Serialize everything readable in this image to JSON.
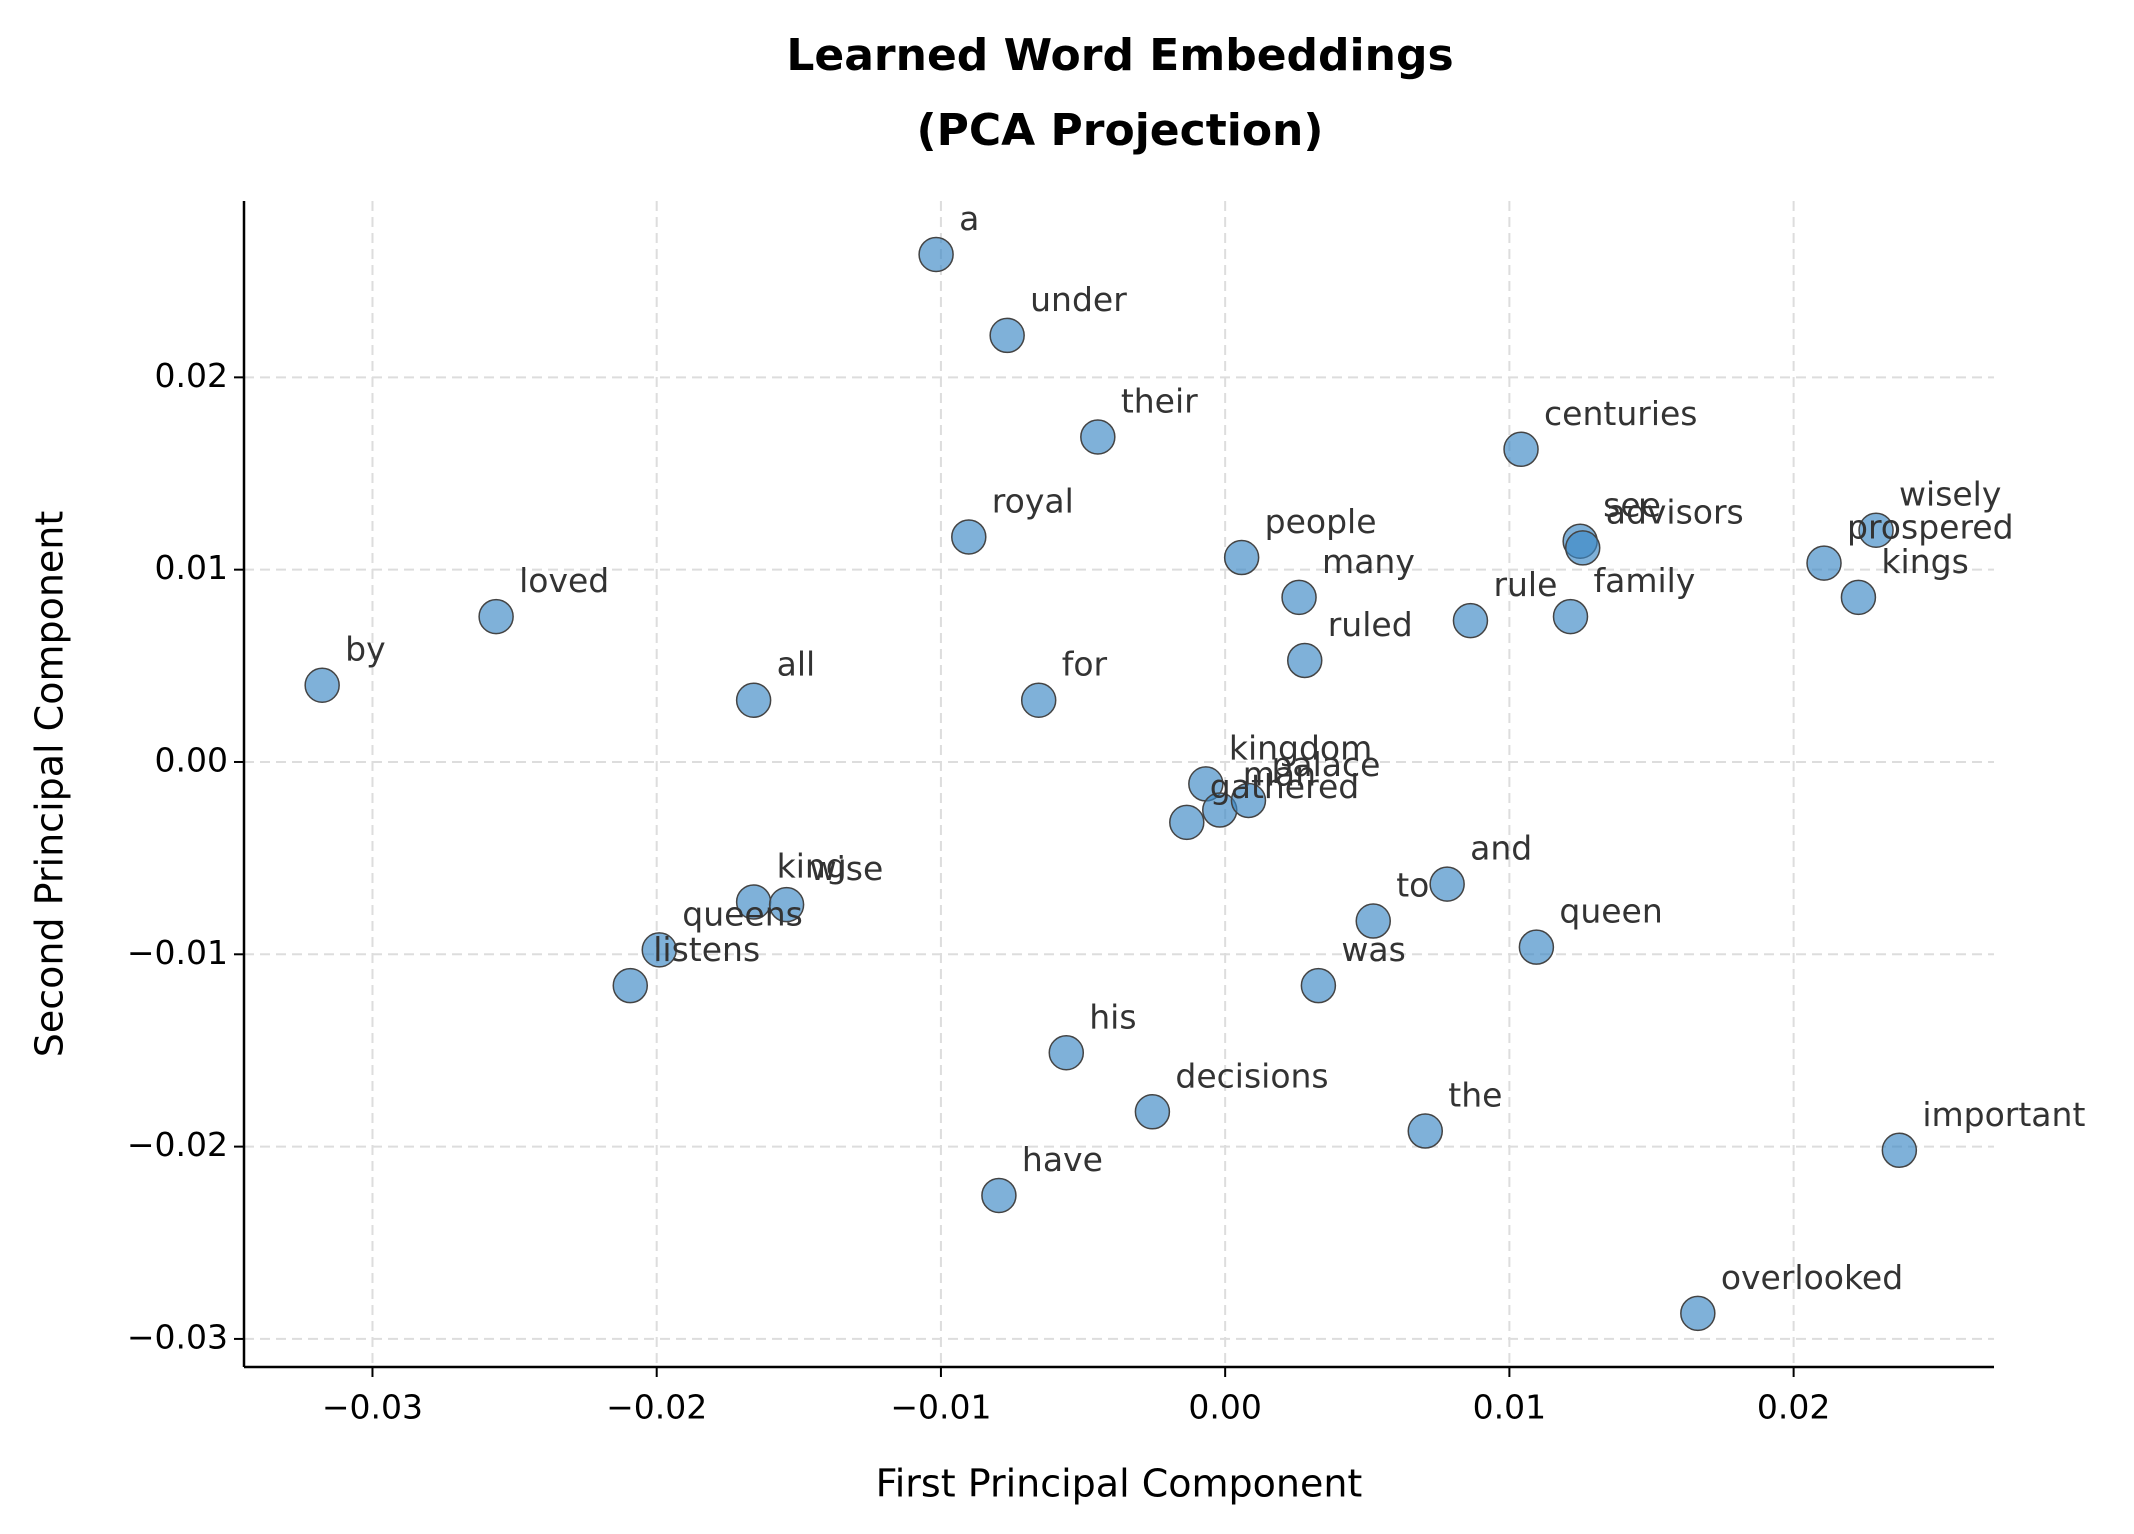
{
  "chart_data": {
    "type": "scatter",
    "title": [
      "Learned Word Embeddings",
      "(PCA Projection)"
    ],
    "x_label": "First Principal Component",
    "y_label": "Second Principal Component",
    "color": "#3a87c4",
    "grid": true,
    "xlim": [
      -0.03452,
      0.02705
    ],
    "ylim": [
      -0.03146,
      0.02917
    ],
    "xticks": [
      {
        "value": -0.03,
        "label": "−0.03"
      },
      {
        "value": -0.02,
        "label": "−0.02"
      },
      {
        "value": -0.01,
        "label": "−0.01"
      },
      {
        "value": 0,
        "label": "0.00"
      },
      {
        "value": 0.01,
        "label": "0.01"
      },
      {
        "value": 0.02,
        "label": "0.02"
      }
    ],
    "yticks": [
      {
        "value": -0.03,
        "label": "−0.03"
      },
      {
        "value": -0.02,
        "label": "−0.02"
      },
      {
        "value": -0.01,
        "label": "−0.01"
      },
      {
        "value": 0,
        "label": "0.00"
      },
      {
        "value": 0.01,
        "label": "0.01"
      },
      {
        "value": 0.02,
        "label": "0.02"
      }
    ],
    "point_labels": [
      "a",
      "under",
      "their",
      "centuries",
      "see",
      "advisors",
      "wisely",
      "prospered",
      "kings",
      "royal",
      "people",
      "many",
      "rule",
      "family",
      "ruled",
      "loved",
      "by",
      "all",
      "for",
      "kingdom",
      "man",
      "palace",
      "gathered",
      "king",
      "wise",
      "queens",
      "listens",
      "and",
      "to",
      "queen",
      "was",
      "his",
      "decisions",
      "the",
      "have",
      "important",
      "overlooked"
    ],
    "x": [
      -0.01017,
      -0.00767,
      -0.00448,
      0.01041,
      0.01249,
      0.01258,
      0.0229,
      0.02107,
      0.02228,
      -0.00902,
      0.00058,
      0.0026,
      0.00863,
      0.01215,
      0.0028,
      -0.02565,
      -0.03177,
      -0.01659,
      -0.00656,
      -0.00068,
      -0.00019,
      0.00082,
      -0.00135,
      -0.01659,
      -0.01543,
      -0.01991,
      -0.02093,
      0.00781,
      0.00521,
      0.01095,
      0.00328,
      -0.00559,
      -0.00256,
      0.00704,
      -0.00796,
      0.02372,
      0.01663
    ],
    "values": [
      0.02639,
      0.02218,
      0.0169,
      0.01626,
      0.01148,
      0.01113,
      0.01205,
      0.01034,
      0.00856,
      0.0117,
      0.01063,
      0.00856,
      0.00735,
      0.00756,
      0.00528,
      0.00756,
      0.00399,
      0.00321,
      0.00321,
      -0.00114,
      -0.0025,
      -0.002,
      -0.00314,
      -0.00728,
      -0.00742,
      -0.00977,
      -0.01163,
      -0.00635,
      -0.00827,
      -0.00963,
      -0.01163,
      -0.01512,
      -0.01819,
      -0.01919,
      -0.02254,
      -0.02019,
      -0.02867
    ]
  }
}
